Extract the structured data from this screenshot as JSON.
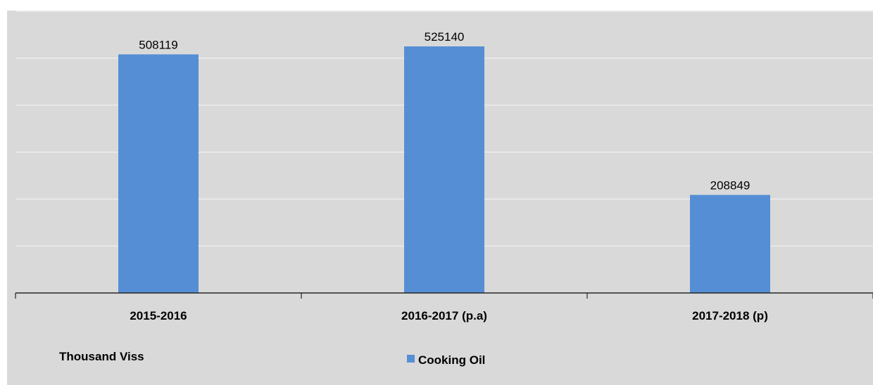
{
  "chart_data": {
    "type": "bar",
    "categories": [
      "2015-2016",
      "2016-2017 (p.a)",
      "2017-2018 (p)"
    ],
    "series": [
      {
        "name": "Cooking Oil",
        "values": [
          508119,
          525140,
          208849
        ],
        "color": "#558ed5"
      }
    ],
    "unit_label": "Thousand Viss",
    "ylim": [
      0,
      600000
    ],
    "grid": true,
    "legend_position": "bottom-center",
    "plot_background": "#d9d9d9"
  }
}
